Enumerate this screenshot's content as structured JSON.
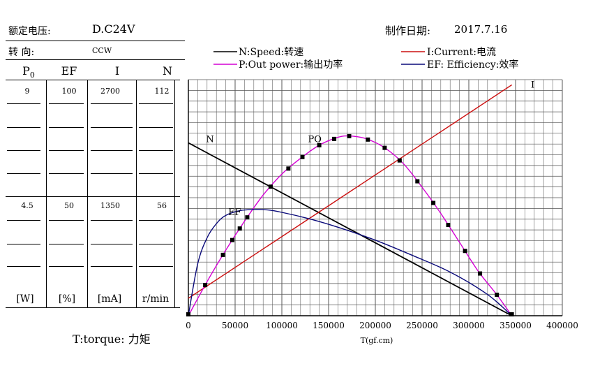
{
  "header": {
    "voltage_label": "额定电压:",
    "voltage_value": "D.C24V",
    "direction_label": "转    向:",
    "direction_value": "CCW",
    "date_label": "制作日期:",
    "date_value": "2017.7.16"
  },
  "columns": [
    {
      "head": "P",
      "head_sub": "0",
      "top": "9",
      "mid": "4.5",
      "unit": "[W]"
    },
    {
      "head": "EF",
      "head_sub": "",
      "top": "100",
      "mid": "50",
      "unit": "[%]"
    },
    {
      "head": "I",
      "head_sub": "",
      "top": "2700",
      "mid": "1350",
      "unit": "[mA]"
    },
    {
      "head": "N",
      "head_sub": "",
      "top": "112",
      "mid": "56",
      "unit": "r/min"
    }
  ],
  "torque_note": "T:torque: 力矩",
  "legend": [
    {
      "label": "N:Speed:转速",
      "color": "#000000"
    },
    {
      "label": "I:Current:电流",
      "color": "#cc1111"
    },
    {
      "label": "P:Out power:输出功率",
      "color": "#d400d4"
    },
    {
      "label": "EF: Efficiency:效率",
      "color": "#0a0a7a"
    }
  ],
  "chart_data": {
    "type": "line",
    "xlabel": "T(gf.cm)",
    "xlim": [
      0,
      400000
    ],
    "x_ticks": [
      "0",
      "50000",
      "100000",
      "150000",
      "200000",
      "250000",
      "300000",
      "350000",
      "400000"
    ],
    "grid": true,
    "series": [
      {
        "name": "N",
        "axis": "N",
        "ylim": [
          0,
          112
        ],
        "color": "#000000",
        "points": [
          [
            0,
            82
          ],
          [
            346000,
            0
          ]
        ]
      },
      {
        "name": "I",
        "axis": "I",
        "ylim": [
          0,
          2700
        ],
        "color": "#cc1111",
        "points": [
          [
            0,
            200
          ],
          [
            346000,
            2640
          ]
        ]
      },
      {
        "name": "P0",
        "axis": "P",
        "ylim": [
          0,
          9
        ],
        "color": "#d400d4",
        "points": [
          [
            0,
            0
          ],
          [
            20000,
            1.3
          ],
          [
            40000,
            2.5
          ],
          [
            60000,
            3.6
          ],
          [
            80000,
            4.6
          ],
          [
            100000,
            5.4
          ],
          [
            120000,
            6.0
          ],
          [
            140000,
            6.5
          ],
          [
            160000,
            6.8
          ],
          [
            173000,
            6.85
          ],
          [
            190000,
            6.75
          ],
          [
            210000,
            6.4
          ],
          [
            230000,
            5.8
          ],
          [
            250000,
            4.9
          ],
          [
            270000,
            3.9
          ],
          [
            290000,
            2.8
          ],
          [
            310000,
            1.7
          ],
          [
            330000,
            0.8
          ],
          [
            346000,
            0
          ]
        ]
      },
      {
        "name": "EF",
        "axis": "EF",
        "ylim": [
          0,
          100
        ],
        "color": "#0a0a7a",
        "points": [
          [
            0,
            0
          ],
          [
            10000,
            22
          ],
          [
            20000,
            33
          ],
          [
            30000,
            39
          ],
          [
            40000,
            42.5
          ],
          [
            55000,
            44.5
          ],
          [
            70000,
            45
          ],
          [
            85000,
            44.8
          ],
          [
            100000,
            43.8
          ],
          [
            130000,
            41
          ],
          [
            160000,
            37.5
          ],
          [
            200000,
            32
          ],
          [
            240000,
            25.5
          ],
          [
            280000,
            18.5
          ],
          [
            320000,
            9
          ],
          [
            346000,
            0
          ]
        ]
      }
    ],
    "markers": {
      "series": "P0",
      "x": [
        18000,
        37000,
        47000,
        55000,
        63000,
        88000,
        107000,
        122000,
        140000,
        156000,
        172000,
        192000,
        210000,
        226000,
        245000,
        262000,
        278000,
        296000,
        312000,
        330000
      ]
    },
    "curve_labels": [
      {
        "text": "N",
        "series": "N",
        "x": 10000
      },
      {
        "text": "I",
        "series": "I",
        "x": 356000
      },
      {
        "text": "PO",
        "series": "P0",
        "x": 134000
      },
      {
        "text": "EF",
        "series": "EF",
        "x": 45000
      }
    ]
  }
}
